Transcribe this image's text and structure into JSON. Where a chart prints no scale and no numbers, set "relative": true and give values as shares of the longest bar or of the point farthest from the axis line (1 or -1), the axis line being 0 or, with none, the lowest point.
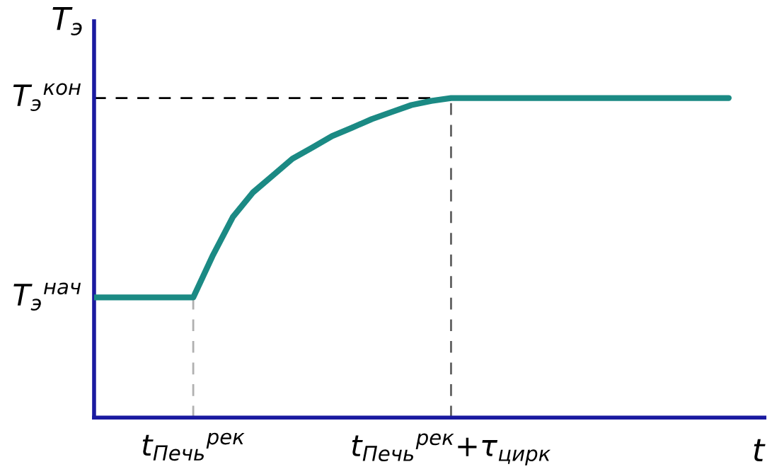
{
  "chart_data": {
    "type": "line",
    "relative": true,
    "xlabel": "t",
    "ylabel": "T$_{э}$",
    "categories": [
      null,
      null,
      null,
      null,
      null,
      "t$_{Печь}$$^{рек}$",
      null,
      null,
      null,
      null,
      null,
      null,
      null,
      null,
      null,
      null,
      null,
      null,
      "t$_{Печь}$$^{рек}$+τ$_{цирк}$",
      null,
      null,
      null,
      null,
      null,
      null,
      null,
      null,
      null,
      null,
      null,
      null,
      null,
      null
    ],
    "series": [
      {
        "color": "#1b8a84",
        "values": [
          0.376,
          0.376,
          0.376,
          0.376,
          0.376,
          0.376,
          0.509,
          0.628,
          0.704,
          0.757,
          0.81,
          0.845,
          0.881,
          0.907,
          0.934,
          0.956,
          0.978,
          0.991,
          1,
          1,
          1,
          1,
          1,
          1,
          1,
          1,
          1,
          1,
          1,
          1,
          1,
          1,
          1
        ]
      }
    ],
    "annotations": [
      "T$_{э}$$^{нач}$",
      "T$_{э}$$^{кон}$"
    ],
    "ref_lines": [
      {
        "axis": "y",
        "value": 1,
        "color": "#000000",
        "line_style": "dashed"
      },
      {
        "axis": "x",
        "value": "t$_{Печь}$$^{рек}$",
        "color": "#b0b0b0",
        "line_style": "dashed"
      },
      {
        "axis": "x",
        "value": "t$_{Печь}$$^{рек}$+τ$_{цирк}$",
        "color": "#606060",
        "line_style": "dashed"
      }
    ],
    "grid": false,
    "legend": false,
    "marker": "none",
    "line_style": "solid"
  }
}
